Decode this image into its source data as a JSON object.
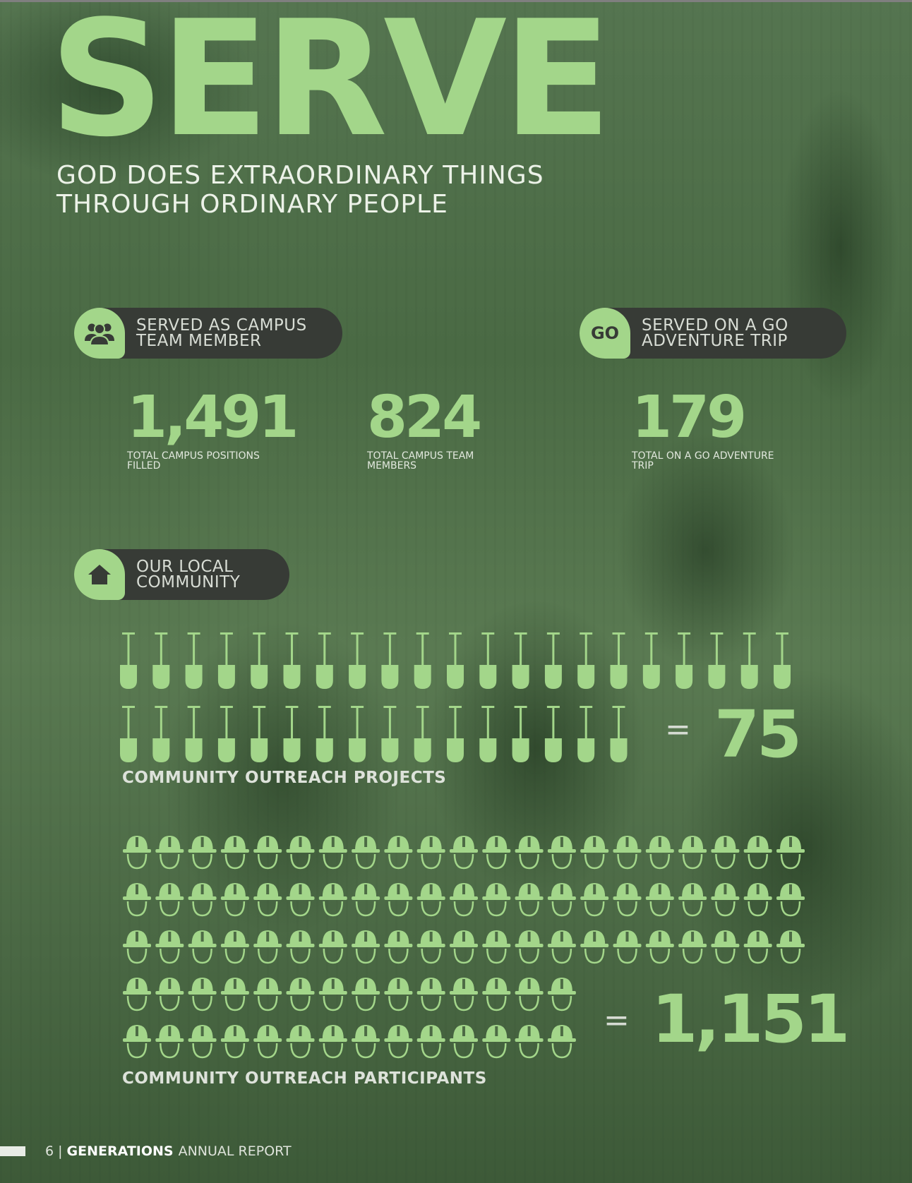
{
  "hero": {
    "title": "SERVE",
    "tagline": "GOD DOES EXTRAORDINARY THINGS\nTHROUGH ORDINARY PEOPLE"
  },
  "campus": {
    "label": "SERVED AS CAMPUS\nTEAM MEMBER",
    "icon": "people-group-icon"
  },
  "go_trip": {
    "badge": "GO",
    "label": "SERVED ON A GO\nADVENTURE TRIP"
  },
  "stats": [
    {
      "value": "1,491",
      "caption": "TOTAL CAMPUS POSITIONS\nFILLED"
    },
    {
      "value": "824",
      "caption": "TOTAL CAMPUS TEAM\nMEMBERS"
    },
    {
      "value": "179",
      "caption": "TOTAL ON A GO ADVENTURE\nTRIP"
    }
  ],
  "community": {
    "label": "OUR LOCAL\nCOMMUNITY",
    "icon": "house-icon"
  },
  "projects": {
    "icon": "shovel-icon",
    "equals": "=",
    "value": "75",
    "label": "COMMUNITY OUTREACH PROJECTS"
  },
  "participants": {
    "icon": "hard-hat-icon",
    "equals": "=",
    "value": "1,151",
    "label": "COMMUNITY OUTREACH PARTICIPANTS"
  },
  "footer": {
    "page": "6",
    "sep": "|",
    "brand": "GENERATIONS",
    "rest": "ANNUAL REPORT"
  },
  "colors": {
    "accent": "#a3d68a",
    "pill": "#373b36"
  }
}
